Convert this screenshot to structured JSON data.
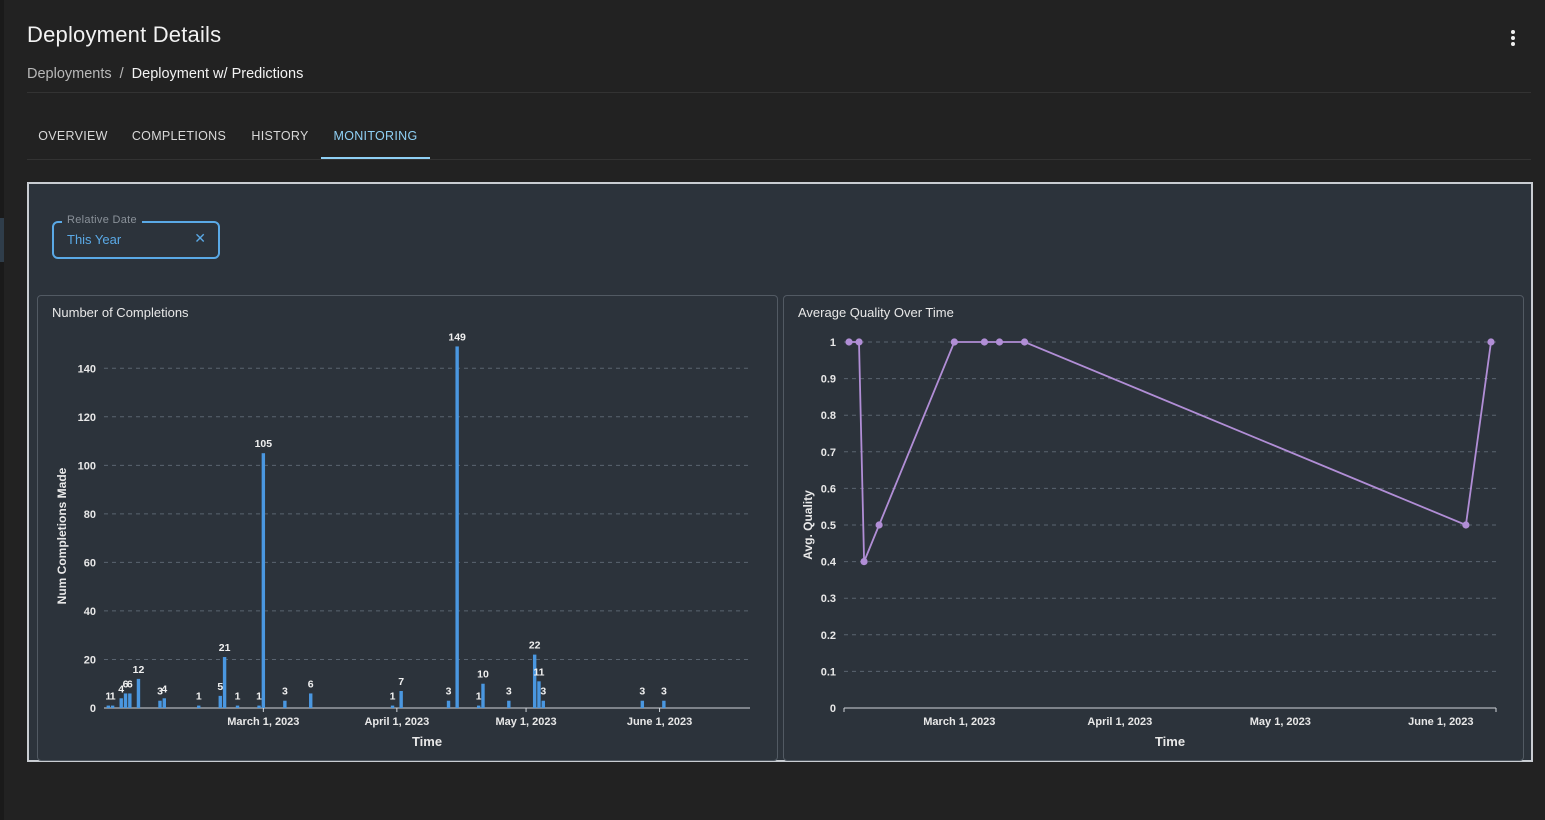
{
  "page": {
    "title": "Deployment Details",
    "breadcrumb": {
      "parent": "Deployments",
      "separator": "/",
      "current": "Deployment w/ Predictions"
    }
  },
  "tabs": [
    {
      "label": "OVERVIEW",
      "active": false
    },
    {
      "label": "COMPLETIONS",
      "active": false
    },
    {
      "label": "HISTORY",
      "active": false
    },
    {
      "label": "MONITORING",
      "active": true
    }
  ],
  "filter": {
    "label": "Relative Date",
    "value": "This Year",
    "clear_icon": "close-icon"
  },
  "colors": {
    "accent": "#8fd0f5",
    "chip": "#5aa9e6",
    "bar": "#4a97e0",
    "line": "#b18ed6"
  },
  "chart_data": [
    {
      "type": "bar",
      "title": "Number of Completions",
      "xlabel": "Time",
      "ylabel": "Num Completions Made",
      "ylim": [
        0,
        150
      ],
      "yticks": [
        0,
        20,
        40,
        60,
        80,
        100,
        120,
        140
      ],
      "xlim": [
        0,
        150
      ],
      "xticks": [
        {
          "label": "March 1, 2023",
          "x": 37
        },
        {
          "label": "April 1, 2023",
          "x": 68
        },
        {
          "label": "May 1, 2023",
          "x": 98
        },
        {
          "label": "June 1, 2023",
          "x": 129
        }
      ],
      "bars": [
        {
          "x": 1,
          "value": 1,
          "label": "1"
        },
        {
          "x": 2,
          "value": 1,
          "label": "1"
        },
        {
          "x": 4,
          "value": 4,
          "label": "4"
        },
        {
          "x": 5,
          "value": 6,
          "label": "6"
        },
        {
          "x": 6,
          "value": 6,
          "label": "6"
        },
        {
          "x": 8,
          "value": 12,
          "label": "12"
        },
        {
          "x": 13,
          "value": 3,
          "label": "3"
        },
        {
          "x": 14,
          "value": 4,
          "label": "4"
        },
        {
          "x": 22,
          "value": 1,
          "label": "1"
        },
        {
          "x": 27,
          "value": 5,
          "label": "5"
        },
        {
          "x": 28,
          "value": 21,
          "label": "21"
        },
        {
          "x": 31,
          "value": 1,
          "label": "1"
        },
        {
          "x": 36,
          "value": 1,
          "label": "1"
        },
        {
          "x": 37,
          "value": 105,
          "label": "105"
        },
        {
          "x": 42,
          "value": 3,
          "label": "3"
        },
        {
          "x": 48,
          "value": 6,
          "label": "6"
        },
        {
          "x": 67,
          "value": 1,
          "label": "1"
        },
        {
          "x": 69,
          "value": 7,
          "label": "7"
        },
        {
          "x": 80,
          "value": 3,
          "label": "3"
        },
        {
          "x": 82,
          "value": 149,
          "label": "149"
        },
        {
          "x": 87,
          "value": 1,
          "label": "1"
        },
        {
          "x": 88,
          "value": 10,
          "label": "10"
        },
        {
          "x": 94,
          "value": 3,
          "label": "3"
        },
        {
          "x": 100,
          "value": 22,
          "label": "22"
        },
        {
          "x": 101,
          "value": 11,
          "label": "11"
        },
        {
          "x": 102,
          "value": 3,
          "label": "3"
        },
        {
          "x": 125,
          "value": 3,
          "label": "3"
        },
        {
          "x": 130,
          "value": 3,
          "label": "3"
        }
      ]
    },
    {
      "type": "line",
      "title": "Average Quality Over Time",
      "xlabel": "Time",
      "ylabel": "Avg. Quality",
      "ylim": [
        0,
        1
      ],
      "yticks": [
        "0",
        "0.1",
        "0.2",
        "0.3",
        "0.4",
        "0.5",
        "0.6",
        "0.7",
        "0.8",
        "0.9",
        "1"
      ],
      "xlim": [
        0,
        130
      ],
      "xticks": [
        {
          "label": "March 1, 2023",
          "x": 23
        },
        {
          "label": "April 1, 2023",
          "x": 55
        },
        {
          "label": "May 1, 2023",
          "x": 87
        },
        {
          "label": "June 1, 2023",
          "x": 119
        }
      ],
      "points": [
        {
          "x": 1,
          "y": 1
        },
        {
          "x": 3,
          "y": 1
        },
        {
          "x": 4,
          "y": 0.4
        },
        {
          "x": 7,
          "y": 0.5
        },
        {
          "x": 22,
          "y": 1
        },
        {
          "x": 28,
          "y": 1
        },
        {
          "x": 31,
          "y": 1
        },
        {
          "x": 36,
          "y": 1
        },
        {
          "x": 124,
          "y": 0.5
        },
        {
          "x": 129,
          "y": 1
        }
      ]
    }
  ]
}
